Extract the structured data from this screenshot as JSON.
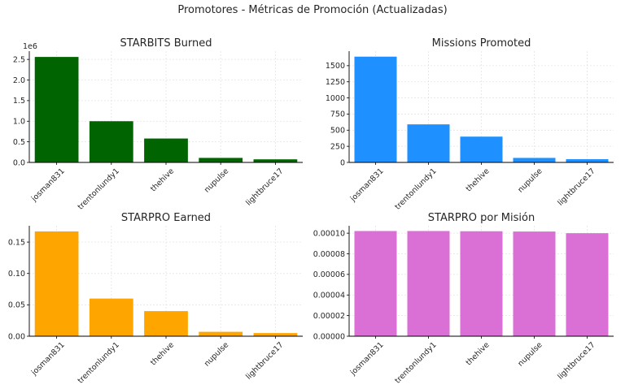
{
  "figure": {
    "title": "Promotores - Métricas de Promoción (Actualizadas)"
  },
  "chart_data": [
    {
      "type": "bar",
      "title": "STARBITS Burned",
      "categories": [
        "josman831",
        "trentonlundy1",
        "thehive",
        "nupulse",
        "lightbruce17"
      ],
      "values": [
        2560000,
        1000000,
        580000,
        110000,
        75000
      ],
      "scale_label": "1e6",
      "ylim": [
        0,
        2700000
      ],
      "yticks": [
        0,
        500000,
        1000000,
        1500000,
        2000000,
        2500000
      ],
      "ytick_labels": [
        "0.0",
        "0.5",
        "1.0",
        "1.5",
        "2.0",
        "2.5"
      ],
      "color": "#006400",
      "grid": true
    },
    {
      "type": "bar",
      "title": "Missions Promoted",
      "categories": [
        "josman831",
        "trentonlundy1",
        "thehive",
        "nupulse",
        "lightbruce17"
      ],
      "values": [
        1640,
        590,
        400,
        70,
        50
      ],
      "ylim": [
        0,
        1725
      ],
      "yticks": [
        0,
        250,
        500,
        750,
        1000,
        1250,
        1500
      ],
      "ytick_labels": [
        "0",
        "250",
        "500",
        "750",
        "1000",
        "1250",
        "1500"
      ],
      "color": "#1e90ff",
      "grid": true
    },
    {
      "type": "bar",
      "title": "STARPRO Earned",
      "categories": [
        "josman831",
        "trentonlundy1",
        "thehive",
        "nupulse",
        "lightbruce17"
      ],
      "values": [
        0.167,
        0.06,
        0.04,
        0.007,
        0.005
      ],
      "ylim": [
        0,
        0.176
      ],
      "yticks": [
        0,
        0.05,
        0.1,
        0.15
      ],
      "ytick_labels": [
        "0.00",
        "0.05",
        "0.10",
        "0.15"
      ],
      "color": "#ffa500",
      "grid": true
    },
    {
      "type": "bar",
      "title": "STARPRO por Misión",
      "categories": [
        "josman831",
        "trentonlundy1",
        "thehive",
        "nupulse",
        "lightbruce17"
      ],
      "values": [
        0.0001021,
        0.0001021,
        0.0001019,
        0.0001016,
        0.0001
      ],
      "ylim": [
        0,
        0.0001072
      ],
      "yticks": [
        0,
        2e-05,
        4e-05,
        6e-05,
        8e-05,
        0.0001
      ],
      "ytick_labels": [
        "0.00000",
        "0.00002",
        "0.00004",
        "0.00006",
        "0.00008",
        "0.00010"
      ],
      "color": "#da70d6",
      "grid": true
    }
  ]
}
